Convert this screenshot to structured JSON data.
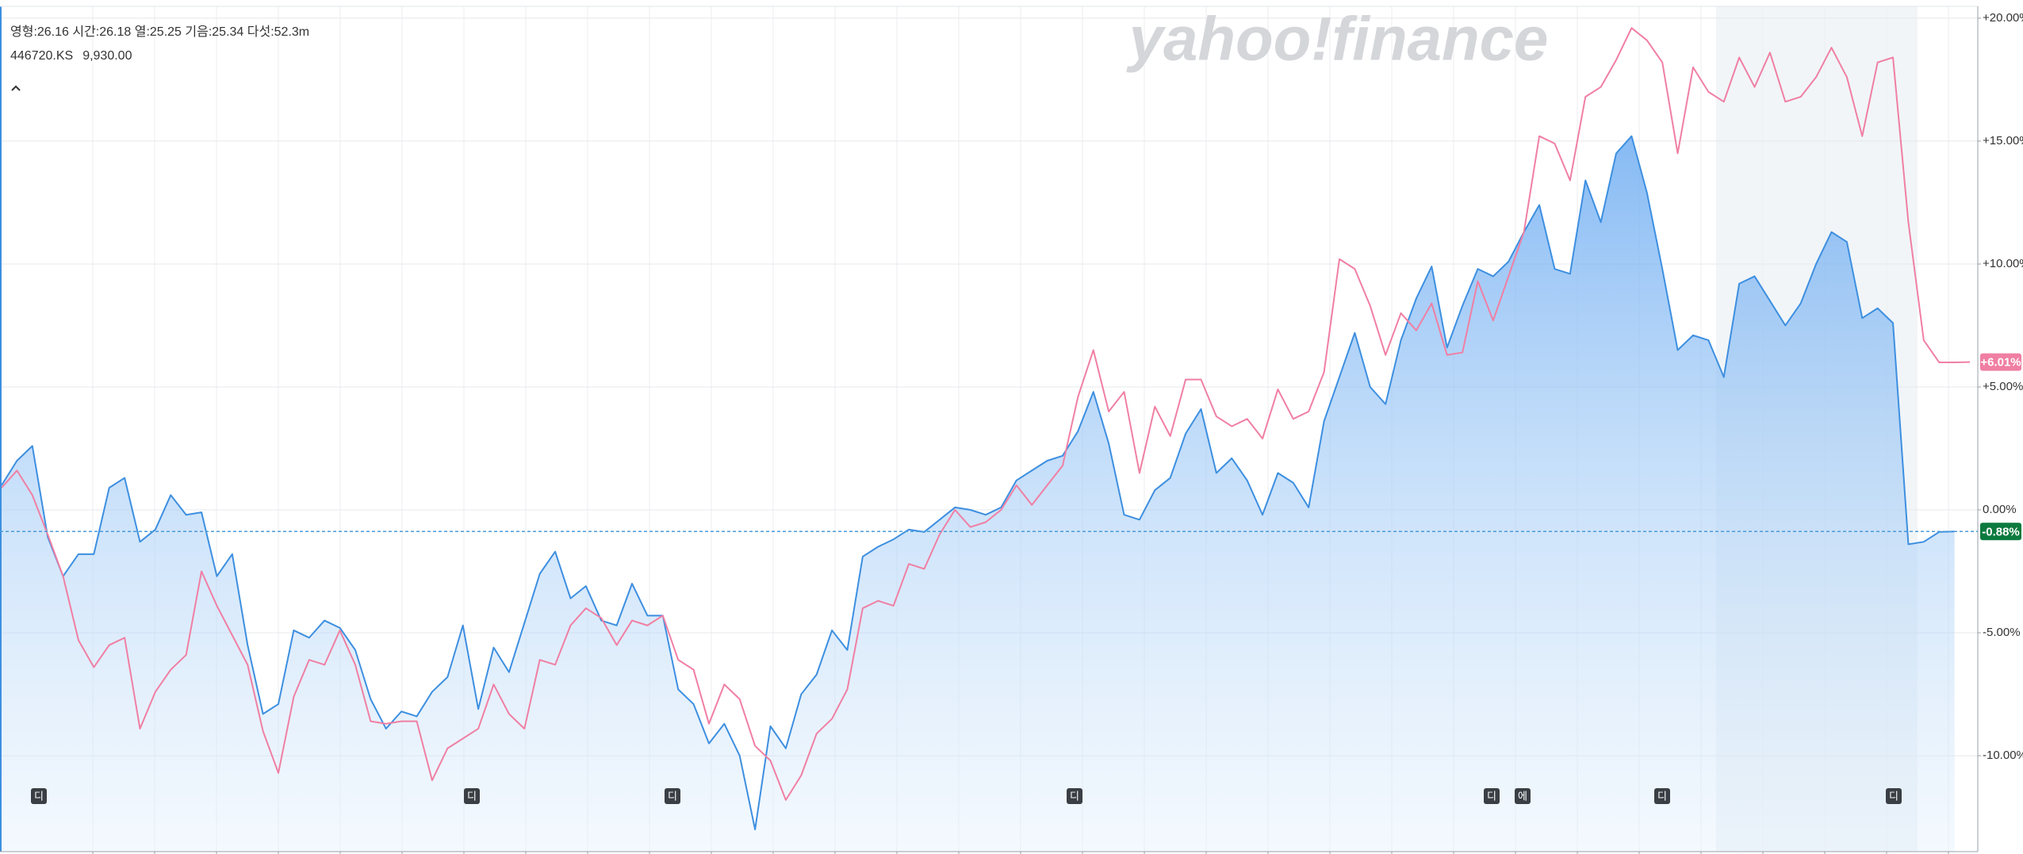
{
  "chart_data": {
    "type": "line",
    "subtitle": "영형:26.16  시간:26.18  열:25.25  기음:25.34  다섯:52.3m",
    "watermark": "yahoo!finance",
    "series": [
      {
        "name": "446720.KS",
        "color": "#3d8fe0",
        "fill": true,
        "values": [
          1.0,
          2.0,
          2.6,
          -1.1,
          -2.7,
          -1.8,
          -1.8,
          0.9,
          1.3,
          -1.3,
          -0.8,
          0.6,
          -0.2,
          -0.1,
          -2.7,
          -1.8,
          -5.5,
          -8.3,
          -7.9,
          -4.9,
          -5.2,
          -4.5,
          -4.8,
          -5.7,
          -7.7,
          -8.9,
          -8.2,
          -8.4,
          -7.4,
          -6.8,
          -4.7,
          -8.1,
          -5.6,
          -6.6,
          -4.6,
          -2.6,
          -1.7,
          -3.6,
          -3.1,
          -4.5,
          -4.7,
          -3.0,
          -4.3,
          -4.3,
          -7.3,
          -7.9,
          -9.5,
          -8.7,
          -10.0,
          -13.0,
          -8.8,
          -9.7,
          -7.5,
          -6.7,
          -4.9,
          -5.7,
          -1.9,
          -1.5,
          -1.2,
          -0.8,
          -0.9,
          -0.4,
          0.1,
          0.0,
          -0.2,
          0.1,
          1.2,
          1.6,
          2.0,
          2.2,
          3.2,
          4.8,
          2.7,
          -0.2,
          -0.4,
          0.8,
          1.3,
          3.1,
          4.1,
          1.5,
          2.1,
          1.2,
          -0.2,
          1.5,
          1.1,
          0.1,
          3.6,
          5.4,
          7.2,
          5.0,
          4.3,
          6.9,
          8.6,
          9.9,
          6.6,
          8.3,
          9.8,
          9.5,
          10.1,
          11.3,
          12.4,
          9.8,
          9.6,
          13.4,
          11.7,
          14.5,
          15.2,
          12.9,
          9.8,
          6.5,
          7.1,
          6.9,
          5.4,
          9.2,
          9.5,
          8.5,
          7.5,
          8.4,
          10.0,
          11.3,
          10.9,
          7.8,
          8.2,
          7.6,
          -1.4,
          -1.3,
          -0.9,
          -0.88,
          null
        ]
      },
      {
        "name": "9,930.00",
        "color": "#f07fa3",
        "fill": false,
        "values": [
          0.9,
          1.6,
          0.6,
          -1.0,
          -2.7,
          -5.3,
          -6.4,
          -5.5,
          -5.2,
          -8.9,
          -7.4,
          -6.5,
          -5.9,
          -2.5,
          -3.9,
          -5.1,
          -6.3,
          -9.0,
          -10.7,
          -7.6,
          -6.1,
          -6.3,
          -4.9,
          -6.3,
          -8.6,
          -8.7,
          -8.6,
          -8.6,
          -11.0,
          -9.7,
          -9.3,
          -8.9,
          -7.1,
          -8.3,
          -8.9,
          -6.1,
          -6.3,
          -4.7,
          -4.0,
          -4.4,
          -5.5,
          -4.5,
          -4.7,
          -4.3,
          -6.1,
          -6.5,
          -8.7,
          -7.1,
          -7.7,
          -9.6,
          -10.2,
          -11.8,
          -10.8,
          -9.1,
          -8.5,
          -7.3,
          -4.0,
          -3.7,
          -3.9,
          -2.2,
          -2.4,
          -1.0,
          0.0,
          -0.7,
          -0.5,
          0.0,
          1.0,
          0.2,
          1.0,
          1.8,
          4.6,
          6.5,
          4.0,
          4.8,
          1.5,
          4.2,
          3.0,
          5.3,
          5.3,
          3.8,
          3.4,
          3.7,
          2.9,
          4.9,
          3.7,
          4.0,
          5.6,
          10.2,
          9.8,
          8.3,
          6.3,
          8.0,
          7.3,
          8.4,
          6.3,
          6.4,
          9.3,
          7.7,
          9.5,
          11.3,
          15.2,
          14.9,
          13.4,
          16.8,
          17.2,
          18.3,
          19.6,
          19.1,
          18.2,
          14.5,
          18.0,
          17.0,
          16.6,
          18.4,
          17.2,
          18.6,
          16.6,
          16.8,
          17.6,
          18.8,
          17.6,
          15.2,
          18.2,
          18.4,
          11.7,
          6.9,
          6.0,
          6.0,
          6.01
        ]
      }
    ],
    "ylim": [
      -13.9,
      20.48
    ],
    "yticks": [
      {
        "value": 20,
        "label": "+20.00%"
      },
      {
        "value": 15,
        "label": "+15.00%"
      },
      {
        "value": 10,
        "label": "+10.00%"
      },
      {
        "value": 5,
        "label": "+5.00%"
      },
      {
        "value": 0,
        "label": "0.00%"
      },
      {
        "value": -5,
        "label": "-5.00%"
      },
      {
        "value": -10,
        "label": "-10.00%"
      }
    ],
    "grid": true,
    "badges": [
      {
        "value": 6.01,
        "label": "+6.01%",
        "color": "#f07fa3"
      },
      {
        "value": -0.88,
        "label": "-0.88%",
        "color": "#0b7a3e"
      }
    ],
    "events": [
      "디",
      "디",
      "디",
      "디",
      "디",
      "에",
      "디",
      "디"
    ]
  }
}
